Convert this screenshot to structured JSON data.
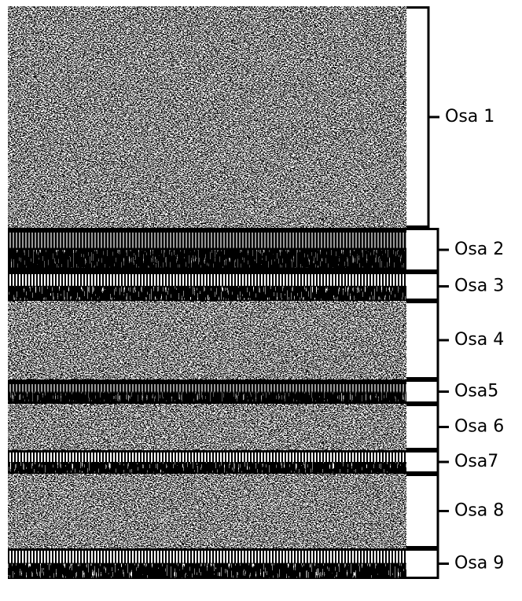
{
  "segments": [
    {
      "label": "Osa 1"
    },
    {
      "label": "Osa 2"
    },
    {
      "label": "Osa 3"
    },
    {
      "label": "Osa 4"
    },
    {
      "label": "Osa5"
    },
    {
      "label": "Osa 6"
    },
    {
      "label": "Osa7"
    },
    {
      "label": "Osa 8"
    },
    {
      "label": "Osa 9"
    }
  ]
}
